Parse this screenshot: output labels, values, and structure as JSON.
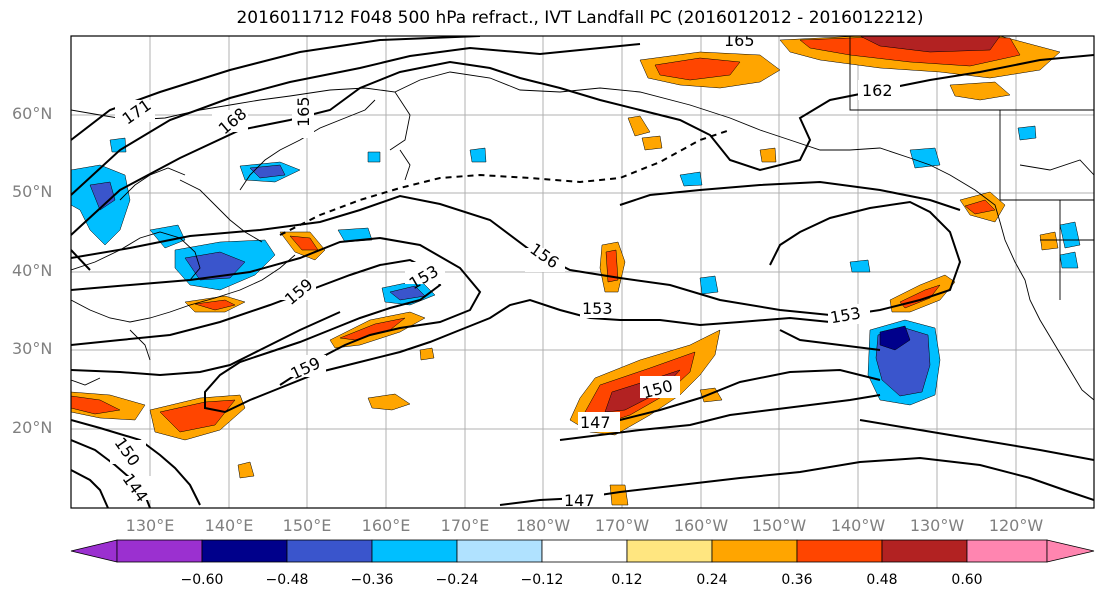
{
  "title": "2016011712 F048 500 hPa refract., IVT Landfall PC (2016012012 - 2016012212)",
  "lat_labels": [
    "60°N",
    "50°N",
    "40°N",
    "30°N",
    "20°N"
  ],
  "lon_labels": [
    "130°E",
    "140°E",
    "150°E",
    "160°E",
    "170°E",
    "180°W",
    "170°W",
    "160°W",
    "150°W",
    "140°W",
    "130°W",
    "120°W"
  ],
  "contour_labels": [
    "171",
    "168",
    "165",
    "165",
    "162",
    "159",
    "159",
    "156",
    "153",
    "153",
    "153",
    "150",
    "147",
    "147",
    "150",
    "144"
  ],
  "colorbar": {
    "ticks": [
      "−0.60",
      "−0.48",
      "−0.36",
      "−0.24",
      "−0.12",
      "0.12",
      "0.24",
      "0.36",
      "0.48",
      "0.60"
    ],
    "colors": [
      "#9b30d0",
      "#00008b",
      "#3a55cc",
      "#00bfff",
      "#b0e2ff",
      "#ffffff",
      "#ffe680",
      "#ffa500",
      "#ff4500",
      "#b22222",
      "#ff85b0"
    ]
  }
}
